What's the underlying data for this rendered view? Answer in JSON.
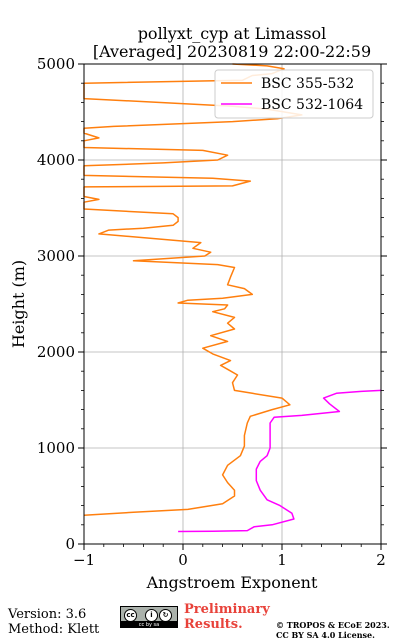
{
  "chart_data": {
    "type": "line",
    "title": [
      "pollyxt_cyp at Limassol",
      "[Averaged] 20230819 22:00-22:59"
    ],
    "xlabel": "Angstroem Exponent",
    "ylabel": "Height (m)",
    "xlim": [
      -1,
      2
    ],
    "ylim": [
      0,
      5000
    ],
    "xticks": [
      "-1",
      "0",
      "1",
      "2"
    ],
    "yticks": [
      "0",
      "1000",
      "2000",
      "3000",
      "4000",
      "5000"
    ],
    "xtick_values": [
      -1,
      0,
      1,
      2
    ],
    "ytick_values": [
      0,
      1000,
      2000,
      3000,
      4000,
      5000
    ],
    "grid": true,
    "legend_position": "top-right",
    "series": [
      {
        "name": "BSC 355-532",
        "color": "#ff7f0e",
        "points": [
          [
            -1.0,
            300
          ],
          [
            -0.5,
            330
          ],
          [
            0.05,
            360
          ],
          [
            0.4,
            420
          ],
          [
            0.52,
            500
          ],
          [
            0.52,
            560
          ],
          [
            0.45,
            640
          ],
          [
            0.4,
            720
          ],
          [
            0.45,
            820
          ],
          [
            0.58,
            920
          ],
          [
            0.62,
            1020
          ],
          [
            0.62,
            1130
          ],
          [
            0.65,
            1260
          ],
          [
            0.68,
            1330
          ],
          [
            0.9,
            1400
          ],
          [
            1.08,
            1450
          ],
          [
            1.0,
            1520
          ],
          [
            0.7,
            1570
          ],
          [
            0.52,
            1600
          ],
          [
            0.5,
            1680
          ],
          [
            0.55,
            1760
          ],
          [
            0.45,
            1820
          ],
          [
            0.38,
            1860
          ],
          [
            0.48,
            1910
          ],
          [
            0.3,
            1980
          ],
          [
            0.2,
            2040
          ],
          [
            0.45,
            2110
          ],
          [
            0.28,
            2170
          ],
          [
            0.52,
            2240
          ],
          [
            0.45,
            2300
          ],
          [
            0.52,
            2360
          ],
          [
            0.3,
            2420
          ],
          [
            0.42,
            2450
          ],
          [
            0.45,
            2490
          ],
          [
            0.2,
            2500
          ],
          [
            -0.05,
            2510
          ],
          [
            0.05,
            2540
          ],
          [
            0.4,
            2560
          ],
          [
            0.7,
            2600
          ],
          [
            0.62,
            2660
          ],
          [
            0.45,
            2700
          ],
          [
            0.48,
            2780
          ],
          [
            0.52,
            2880
          ],
          [
            0.35,
            2910
          ],
          [
            -0.5,
            2950
          ],
          [
            0.22,
            3000
          ],
          [
            0.28,
            3040
          ],
          [
            0.1,
            3080
          ],
          [
            0.18,
            3140
          ],
          [
            -0.85,
            3230
          ],
          [
            -0.75,
            3270
          ],
          [
            -0.4,
            3290
          ],
          [
            -0.1,
            3320
          ],
          [
            -0.05,
            3360
          ],
          [
            -0.05,
            3400
          ],
          [
            -0.1,
            3440
          ],
          [
            -1.0,
            3490
          ],
          [
            -1.0,
            3560
          ],
          [
            -0.85,
            3590
          ],
          [
            -1.0,
            3620
          ],
          [
            -1.0,
            3720
          ],
          [
            0.5,
            3730
          ],
          [
            0.68,
            3780
          ],
          [
            0.3,
            3810
          ],
          [
            -1.0,
            3840
          ],
          [
            -1.0,
            3940
          ],
          [
            -0.2,
            3970
          ],
          [
            0.35,
            4000
          ],
          [
            0.45,
            4050
          ],
          [
            0.2,
            4100
          ],
          [
            -1.0,
            4130
          ],
          [
            -1.0,
            4200
          ],
          [
            -0.85,
            4230
          ],
          [
            -1.0,
            4280
          ],
          [
            -1.0,
            4330
          ],
          [
            -0.7,
            4350
          ],
          [
            0.5,
            4400
          ],
          [
            0.95,
            4430
          ],
          [
            1.2,
            4470
          ],
          [
            0.85,
            4530
          ],
          [
            0.5,
            4560
          ],
          [
            -1.0,
            4640
          ],
          [
            -1.0,
            4800
          ],
          [
            0.6,
            4830
          ],
          [
            0.7,
            4880
          ],
          [
            0.9,
            4900
          ],
          [
            1.02,
            4950
          ],
          [
            0.85,
            4980
          ],
          [
            0.5,
            5000
          ]
        ]
      },
      {
        "name": "BSC 532-1064",
        "color": "#ff00ff",
        "points": [
          [
            -0.05,
            130
          ],
          [
            0.3,
            132
          ],
          [
            0.65,
            140
          ],
          [
            0.72,
            180
          ],
          [
            0.9,
            200
          ],
          [
            1.12,
            260
          ],
          [
            1.1,
            320
          ],
          [
            0.98,
            400
          ],
          [
            0.85,
            460
          ],
          [
            0.78,
            560
          ],
          [
            0.74,
            660
          ],
          [
            0.74,
            780
          ],
          [
            0.78,
            860
          ],
          [
            0.85,
            920
          ],
          [
            0.88,
            1000
          ],
          [
            0.88,
            1100
          ],
          [
            0.88,
            1260
          ],
          [
            0.92,
            1320
          ],
          [
            1.2,
            1340
          ],
          [
            1.58,
            1380
          ],
          [
            1.48,
            1460
          ],
          [
            1.42,
            1520
          ],
          [
            1.55,
            1570
          ],
          [
            1.8,
            1590
          ],
          [
            2.0,
            1600
          ]
        ]
      }
    ]
  },
  "footer": {
    "version": "Version: 3.6",
    "method": "Method: Klett",
    "license_badge": "cc by sa",
    "preliminary_line1": "Preliminary",
    "preliminary_line2": "Results.",
    "copyright_line1": "© TROPOS & ECoE 2023.",
    "copyright_line2": "CC BY SA 4.0 License."
  }
}
